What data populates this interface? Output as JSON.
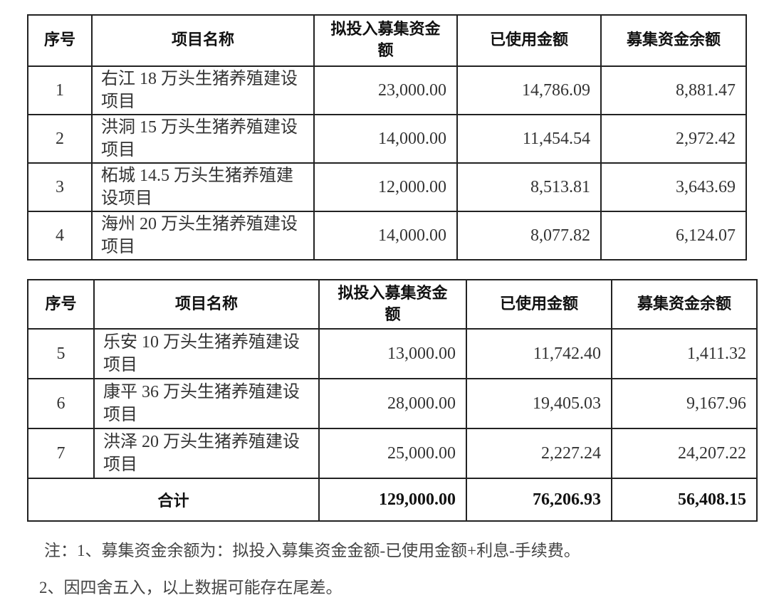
{
  "headers": [
    "序号",
    "项目名称",
    "拟投入募集资金额",
    "已使用金额",
    "募集资金余额"
  ],
  "table1": [
    {
      "no": "1",
      "name": "右江 18 万头生猪养殖建设项目",
      "planned": "23,000.00",
      "used": "14,786.09",
      "remaining": "8,881.47"
    },
    {
      "no": "2",
      "name": "洪洞 15 万头生猪养殖建设项目",
      "planned": "14,000.00",
      "used": "11,454.54",
      "remaining": "2,972.42"
    },
    {
      "no": "3",
      "name": "柘城 14.5 万头生猪养殖建设项目",
      "planned": "12,000.00",
      "used": "8,513.81",
      "remaining": "3,643.69"
    },
    {
      "no": "4",
      "name": "海州 20 万头生猪养殖建设项目",
      "planned": "14,000.00",
      "used": "8,077.82",
      "remaining": "6,124.07"
    }
  ],
  "table2": [
    {
      "no": "5",
      "name": "乐安 10 万头生猪养殖建设项目",
      "planned": "13,000.00",
      "used": "11,742.40",
      "remaining": "1,411.32"
    },
    {
      "no": "6",
      "name": "康平 36 万头生猪养殖建设项目",
      "planned": "28,000.00",
      "used": "19,405.03",
      "remaining": "9,167.96"
    },
    {
      "no": "7",
      "name": "洪泽 20 万头生猪养殖建设项目",
      "planned": "25,000.00",
      "used": "2,227.24",
      "remaining": "24,207.22"
    }
  ],
  "total": {
    "label": "合计",
    "planned": "129,000.00",
    "used": "76,206.93",
    "remaining": "56,408.15"
  },
  "notes": [
    "注：1、募集资金余额为：拟投入募集资金金额-已使用金额+利息-手续费。",
    "2、因四舍五入，以上数据可能存在尾差。"
  ]
}
